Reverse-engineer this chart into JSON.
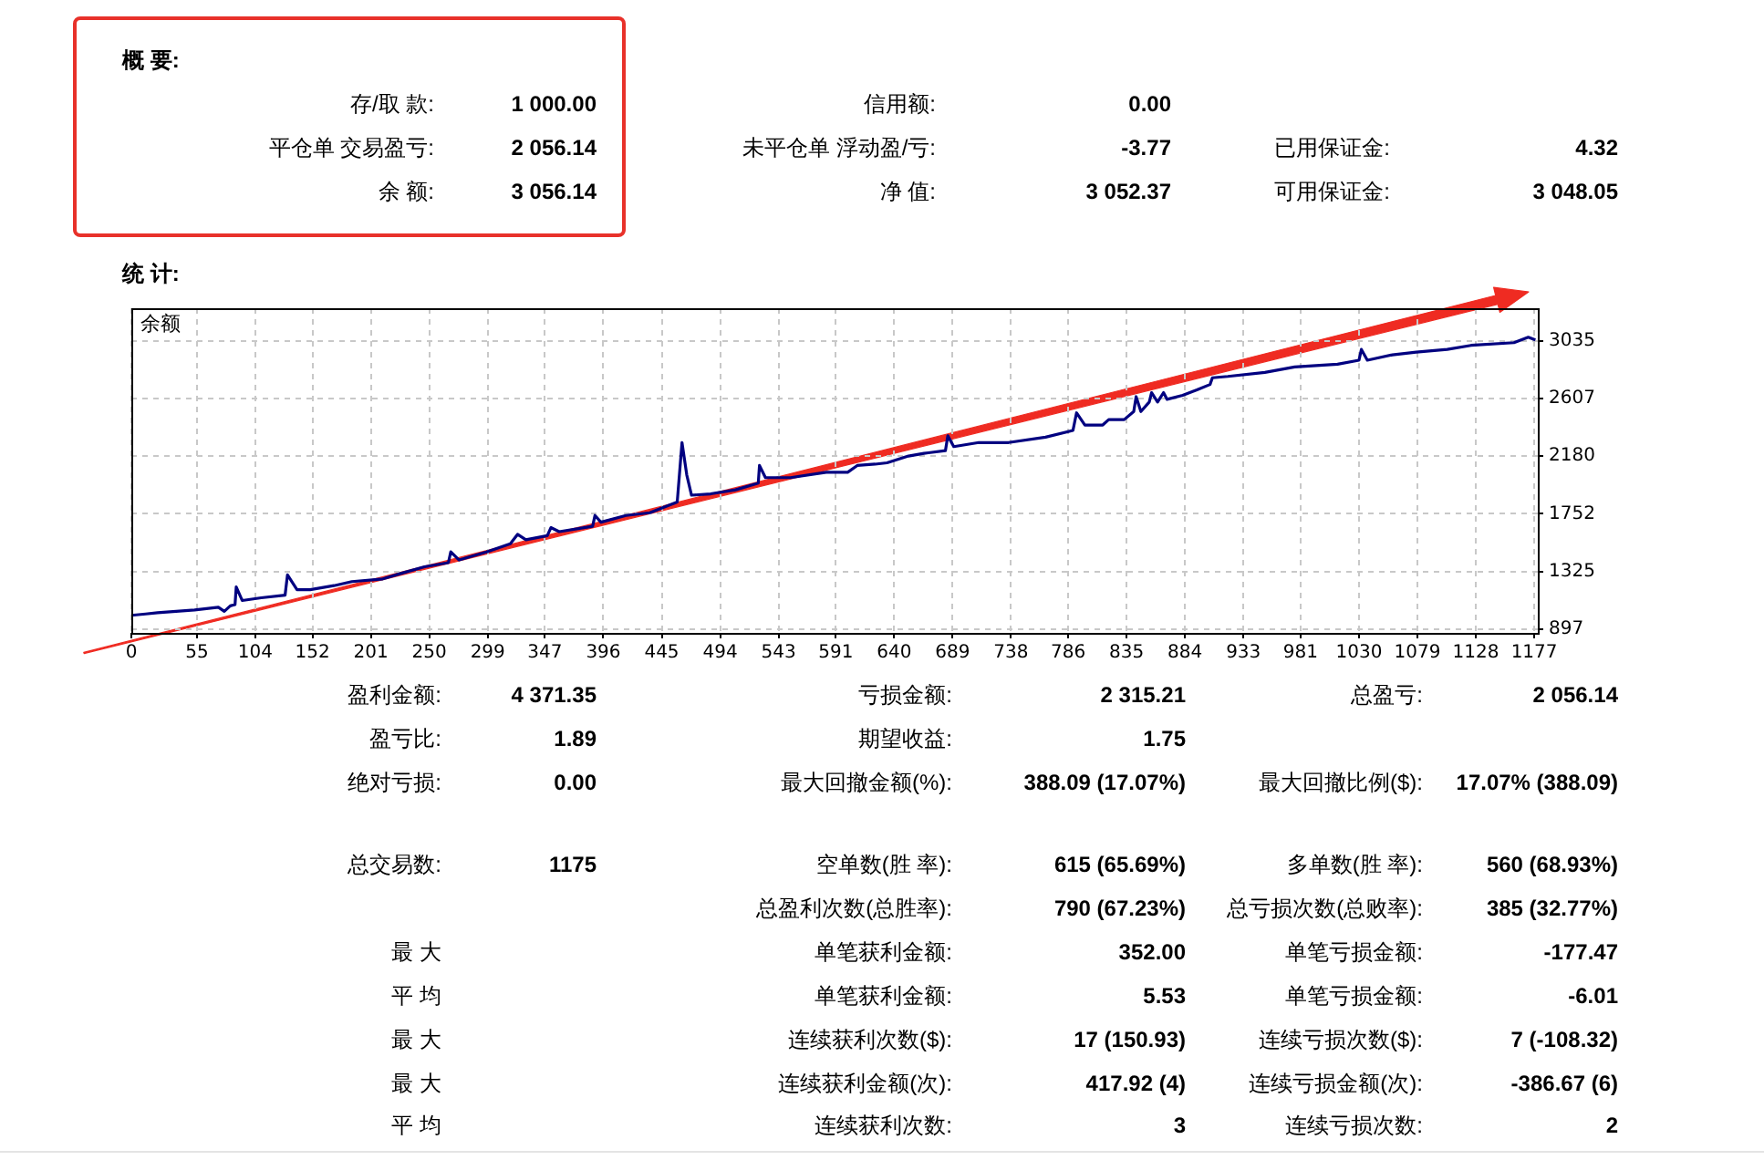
{
  "chart_data": [
    {
      "type": "other",
      "title": "概 要:",
      "annotations": [
        "存/取 款:",
        "1 000.00",
        "信用额:",
        "0.00",
        "平仓单 交易盈亏:",
        "2 056.14",
        "未平仓单 浮动盈/亏:",
        "-3.77",
        "已用保证金:",
        "4.32",
        "余 额:",
        "3 056.14",
        "净 值:",
        "3 052.37",
        "可用保证金:",
        "3 048.05"
      ]
    },
    {
      "type": "line",
      "title": "统 计:",
      "annotations": [
        "余额"
      ],
      "color": "#000080",
      "marker": "none",
      "grid": true,
      "x": [
        0,
        12,
        22,
        53,
        73,
        78,
        83,
        87,
        88,
        93,
        109,
        129,
        131,
        139,
        150,
        170,
        185,
        211,
        226,
        246,
        266,
        268,
        275,
        298,
        318,
        324,
        331,
        349,
        352,
        359,
        387,
        389,
        394,
        415,
        435,
        458,
        462,
        466,
        470,
        486,
        507,
        526,
        527,
        532,
        553,
        583,
        601,
        609,
        624,
        634,
        652,
        665,
        683,
        685,
        690,
        711,
        736,
        767,
        790,
        793,
        800,
        815,
        820,
        833,
        841,
        843,
        847,
        854,
        856,
        861,
        866,
        869,
        882,
        894,
        905,
        907,
        920,
        951,
        976,
        1012,
        1030,
        1032,
        1037,
        1058,
        1078,
        1104,
        1124,
        1160,
        1172,
        1178
      ],
      "values": [
        1000,
        1010,
        1020,
        1040,
        1060,
        1030,
        1070,
        1080,
        1210,
        1110,
        1130,
        1150,
        1300,
        1190,
        1190,
        1220,
        1250,
        1270,
        1310,
        1360,
        1390,
        1470,
        1410,
        1470,
        1530,
        1600,
        1560,
        1590,
        1650,
        1620,
        1660,
        1740,
        1690,
        1740,
        1760,
        1840,
        2280,
        2040,
        1890,
        1900,
        1930,
        1980,
        2110,
        2020,
        2020,
        2060,
        2060,
        2110,
        2120,
        2130,
        2180,
        2200,
        2220,
        2330,
        2250,
        2280,
        2280,
        2320,
        2370,
        2500,
        2410,
        2410,
        2450,
        2450,
        2510,
        2620,
        2510,
        2580,
        2650,
        2580,
        2650,
        2600,
        2630,
        2670,
        2710,
        2760,
        2770,
        2800,
        2840,
        2860,
        2890,
        2970,
        2890,
        2930,
        2950,
        2970,
        3000,
        3020,
        3060,
        3040
      ],
      "xlim": [
        0,
        1180
      ],
      "xticks": [
        0,
        55,
        104,
        152,
        201,
        250,
        299,
        347,
        396,
        445,
        494,
        543,
        591,
        640,
        689,
        738,
        786,
        835,
        884,
        933,
        981,
        1030,
        1079,
        1128,
        1177
      ],
      "ylim": [
        870,
        3275
      ],
      "yticks": [
        897,
        1325,
        1752,
        2180,
        2607,
        3035
      ]
    },
    {
      "type": "other",
      "annotations": [
        "盈利金额:",
        "4 371.35",
        "亏损金额:",
        "2 315.21",
        "总盈亏:",
        "2 056.14",
        "盈亏比:",
        "1.89",
        "期望收益:",
        "1.75",
        "绝对亏损:",
        "0.00",
        "最大回撤金额(%):",
        "388.09 (17.07%)",
        "最大回撤比例($):",
        "17.07% (388.09)",
        "总交易数:",
        "1175",
        "空单数(胜 率):",
        "615 (65.69%)",
        "多单数(胜 率):",
        "560 (68.93%)",
        "总盈利次数(总胜率):",
        "790 (67.23%)",
        "总亏损次数(总败率):",
        "385 (32.77%)",
        "最 大",
        "单笔获利金额:",
        "352.00",
        "单笔亏损金额:",
        "-177.47",
        "平 均",
        "单笔获利金额:",
        "5.53",
        "单笔亏损金额:",
        "-6.01",
        "最 大",
        "连续获利次数($):",
        "17 (150.93)",
        "连续亏损次数($):",
        "7 (-108.32)",
        "最 大",
        "连续获利金额(次):",
        "417.92 (4)",
        "连续亏损金额(次):",
        "-386.67 (6)",
        "平 均",
        "连续获利次数:",
        "3",
        "连续亏损次数:",
        "2"
      ]
    }
  ]
}
